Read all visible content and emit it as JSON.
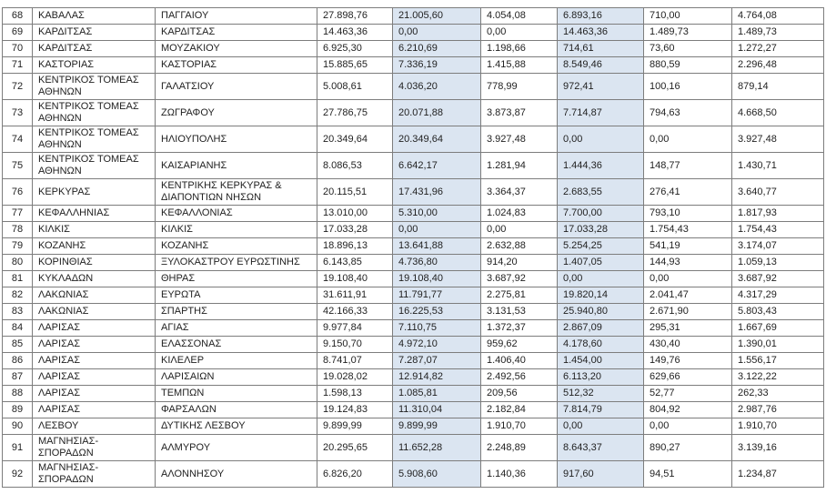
{
  "colors": {
    "highlight": "#dbe5f1",
    "border": "#7d7d7d",
    "text": "#1f1f1f",
    "background": "#ffffff"
  },
  "table": {
    "rows": [
      {
        "num": "68",
        "region": "ΚΑΒΑΛΑΣ",
        "municipality": "ΠΑΓΓΑΙΟΥ",
        "values": [
          "27.898,76",
          "21.005,60",
          "4.054,08",
          "6.893,16",
          "710,00",
          "4.764,08"
        ],
        "tall": false
      },
      {
        "num": "69",
        "region": "ΚΑΡΔΙΤΣΑΣ",
        "municipality": "ΚΑΡΔΙΤΣΑΣ",
        "values": [
          "14.463,36",
          "0,00",
          "0,00",
          "14.463,36",
          "1.489,73",
          "1.489,73"
        ],
        "tall": false
      },
      {
        "num": "70",
        "region": "ΚΑΡΔΙΤΣΑΣ",
        "municipality": "ΜΟΥΖΑΚΙΟΥ",
        "values": [
          "6.925,30",
          "6.210,69",
          "1.198,66",
          "714,61",
          "73,60",
          "1.272,27"
        ],
        "tall": false
      },
      {
        "num": "71",
        "region": "ΚΑΣΤΟΡΙΑΣ",
        "municipality": "ΚΑΣΤΟΡΙΑΣ",
        "values": [
          "15.885,65",
          "7.336,19",
          "1.415,88",
          "8.549,46",
          "880,59",
          "2.296,48"
        ],
        "tall": false
      },
      {
        "num": "72",
        "region": "ΚΕΝΤΡΙΚΟΣ ΤΟΜΕΑΣ ΑΘΗΝΩΝ",
        "municipality": "ΓΑΛΑΤΣΙΟΥ",
        "values": [
          "5.008,61",
          "4.036,20",
          "778,99",
          "972,41",
          "100,16",
          "879,14"
        ],
        "tall": true
      },
      {
        "num": "73",
        "region": "ΚΕΝΤΡΙΚΟΣ ΤΟΜΕΑΣ ΑΘΗΝΩΝ",
        "municipality": "ΖΩΓΡΑΦΟΥ",
        "values": [
          "27.786,75",
          "20.071,88",
          "3.873,87",
          "7.714,87",
          "794,63",
          "4.668,50"
        ],
        "tall": true
      },
      {
        "num": "74",
        "region": "ΚΕΝΤΡΙΚΟΣ ΤΟΜΕΑΣ ΑΘΗΝΩΝ",
        "municipality": "ΗΛΙΟΥΠΟΛΗΣ",
        "values": [
          "20.349,64",
          "20.349,64",
          "3.927,48",
          "0,00",
          "0,00",
          "3.927,48"
        ],
        "tall": true
      },
      {
        "num": "75",
        "region": "ΚΕΝΤΡΙΚΟΣ ΤΟΜΕΑΣ ΑΘΗΝΩΝ",
        "municipality": "ΚΑΙΣΑΡΙΑΝΗΣ",
        "values": [
          "8.086,53",
          "6.642,17",
          "1.281,94",
          "1.444,36",
          "148,77",
          "1.430,71"
        ],
        "tall": true
      },
      {
        "num": "76",
        "region": "ΚΕΡΚΥΡΑΣ",
        "municipality": "ΚΕΝΤΡΙΚΗΣ ΚΕΡΚΥΡΑΣ & ΔΙΑΠΟΝΤΙΩΝ ΝΗΣΩΝ",
        "values": [
          "20.115,51",
          "17.431,96",
          "3.364,37",
          "2.683,55",
          "276,41",
          "3.640,77"
        ],
        "tall": true
      },
      {
        "num": "77",
        "region": "ΚΕΦΑΛΛΗΝΙΑΣ",
        "municipality": "ΚΕΦΑΛΛΟΝΙΑΣ",
        "values": [
          "13.010,00",
          "5.310,00",
          "1.024,83",
          "7.700,00",
          "793,10",
          "1.817,93"
        ],
        "tall": false
      },
      {
        "num": "78",
        "region": "ΚΙΛΚΙΣ",
        "municipality": "ΚΙΛΚΙΣ",
        "values": [
          "17.033,28",
          "0,00",
          "0,00",
          "17.033,28",
          "1.754,43",
          "1.754,43"
        ],
        "tall": false
      },
      {
        "num": "79",
        "region": "ΚΟΖΑΝΗΣ",
        "municipality": "ΚΟΖΑΝΗΣ",
        "values": [
          "18.896,13",
          "13.641,88",
          "2.632,88",
          "5.254,25",
          "541,19",
          "3.174,07"
        ],
        "tall": false
      },
      {
        "num": "80",
        "region": "ΚΟΡΙΝΘΙΑΣ",
        "municipality": "ΞΥΛΟΚΑΣΤΡΟΥ ΕΥΡΩΣΤΙΝΗΣ",
        "values": [
          "6.143,85",
          "4.736,80",
          "914,20",
          "1.407,05",
          "144,93",
          "1.059,13"
        ],
        "tall": false
      },
      {
        "num": "81",
        "region": "ΚΥΚΛΑΔΩΝ",
        "municipality": "ΘΗΡΑΣ",
        "values": [
          "19.108,40",
          "19.108,40",
          "3.687,92",
          "0,00",
          "0,00",
          "3.687,92"
        ],
        "tall": false
      },
      {
        "num": "82",
        "region": "ΛΑΚΩΝΙΑΣ",
        "municipality": "ΕΥΡΩΤΑ",
        "values": [
          "31.611,91",
          "11.791,77",
          "2.275,81",
          "19.820,14",
          "2.041,47",
          "4.317,29"
        ],
        "tall": false
      },
      {
        "num": "83",
        "region": "ΛΑΚΩΝΙΑΣ",
        "municipality": "ΣΠΑΡΤΗΣ",
        "values": [
          "42.166,33",
          "16.225,53",
          "3.131,53",
          "25.940,80",
          "2.671,90",
          "5.803,43"
        ],
        "tall": false
      },
      {
        "num": "84",
        "region": "ΛΑΡΙΣΑΣ",
        "municipality": "ΑΓΙΑΣ",
        "values": [
          "9.977,84",
          "7.110,75",
          "1.372,37",
          "2.867,09",
          "295,31",
          "1.667,69"
        ],
        "tall": false
      },
      {
        "num": "85",
        "region": "ΛΑΡΙΣΑΣ",
        "municipality": "ΕΛΑΣΣΟΝΑΣ",
        "values": [
          "9.150,70",
          "4.972,10",
          "959,62",
          "4.178,60",
          "430,40",
          "1.390,01"
        ],
        "tall": false
      },
      {
        "num": "86",
        "region": "ΛΑΡΙΣΑΣ",
        "municipality": "ΚΙΛΕΛΕΡ",
        "values": [
          "8.741,07",
          "7.287,07",
          "1.406,40",
          "1.454,00",
          "149,76",
          "1.556,17"
        ],
        "tall": false
      },
      {
        "num": "87",
        "region": "ΛΑΡΙΣΑΣ",
        "municipality": "ΛΑΡΙΣΑΙΩΝ",
        "values": [
          "19.028,02",
          "12.914,82",
          "2.492,56",
          "6.113,20",
          "629,66",
          "3.122,22"
        ],
        "tall": false
      },
      {
        "num": "88",
        "region": "ΛΑΡΙΣΑΣ",
        "municipality": "ΤΕΜΠΩΝ",
        "values": [
          "1.598,13",
          "1.085,81",
          "209,56",
          "512,32",
          "52,77",
          "262,33"
        ],
        "tall": false
      },
      {
        "num": "89",
        "region": "ΛΑΡΙΣΑΣ",
        "municipality": "ΦΑΡΣΑΛΩΝ",
        "values": [
          "19.124,83",
          "11.310,04",
          "2.182,84",
          "7.814,79",
          "804,92",
          "2.987,76"
        ],
        "tall": false
      },
      {
        "num": "90",
        "region": "ΛΕΣΒΟΥ",
        "municipality": "ΔΥΤΙΚΗΣ ΛΕΣΒΟΥ",
        "values": [
          "9.899,99",
          "9.899,99",
          "1.910,70",
          "0,00",
          "0,00",
          "1.910,70"
        ],
        "tall": false
      },
      {
        "num": "91",
        "region": "ΜΑΓΝΗΣΙΑΣ-ΣΠΟΡΑΔΩΝ",
        "municipality": "ΑΛΜΥΡΟΥ",
        "values": [
          "20.295,65",
          "11.652,28",
          "2.248,89",
          "8.643,37",
          "890,27",
          "3.139,16"
        ],
        "tall": true
      },
      {
        "num": "92",
        "region": "ΜΑΓΝΗΣΙΑΣ-ΣΠΟΡΑΔΩΝ",
        "municipality": "ΑΛΟΝΝΗΣΟΥ",
        "values": [
          "6.826,20",
          "5.908,60",
          "1.140,36",
          "917,60",
          "94,51",
          "1.234,87"
        ],
        "tall": true
      }
    ]
  }
}
